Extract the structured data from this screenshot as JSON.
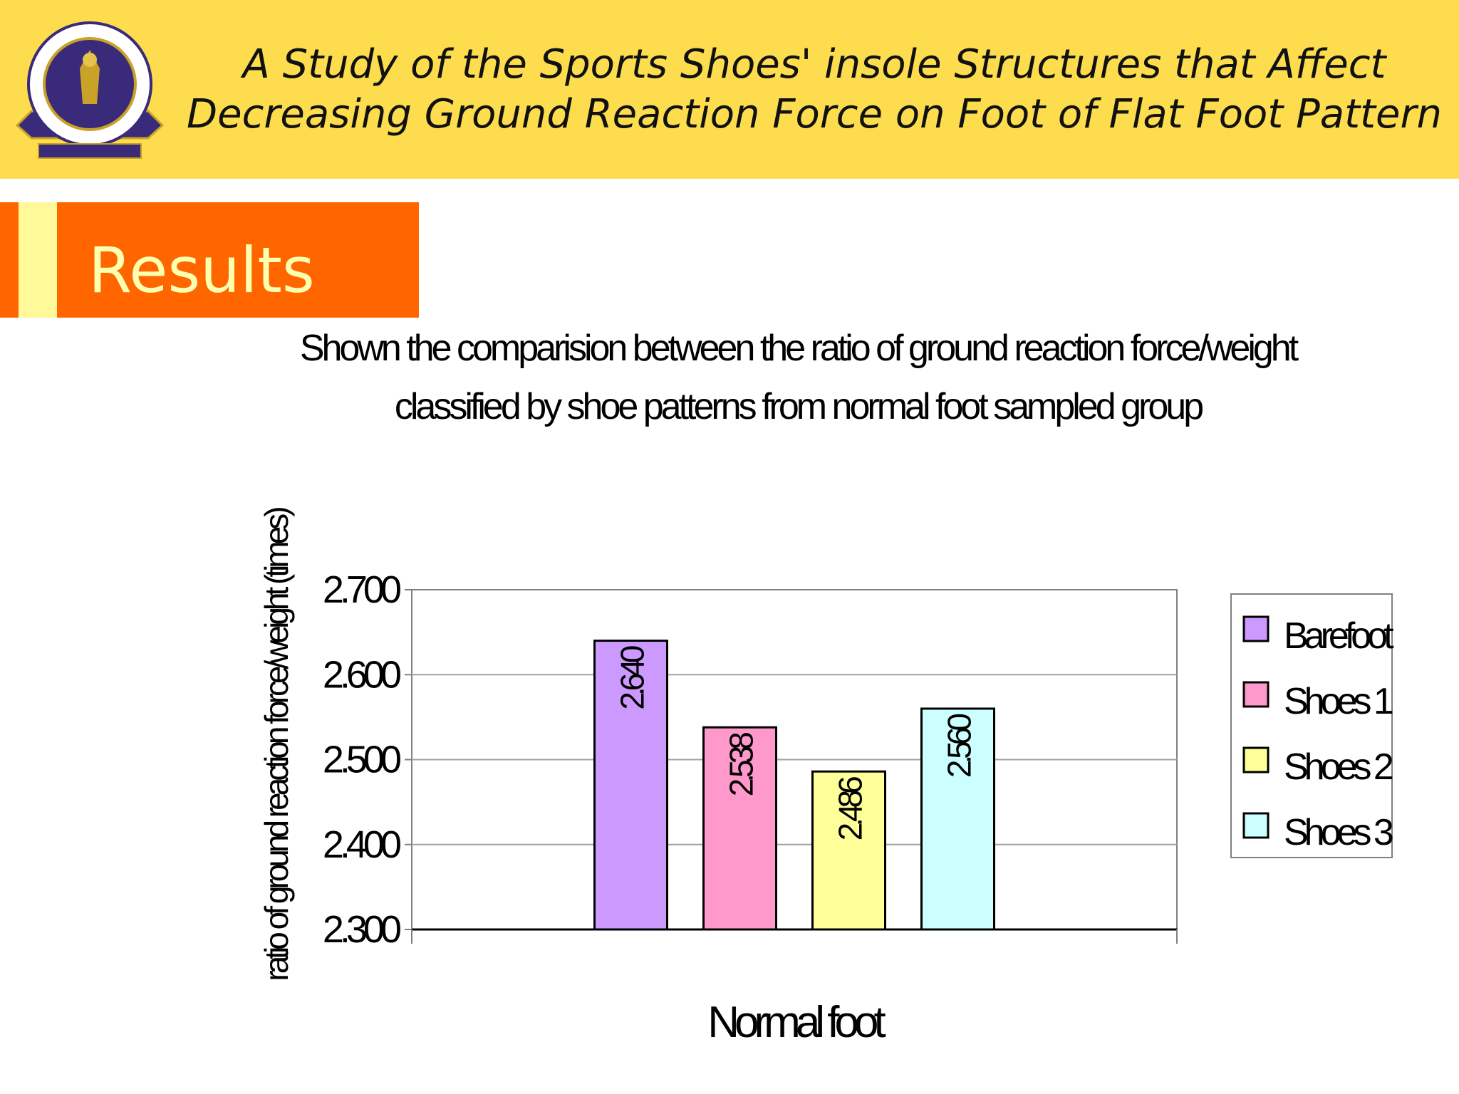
{
  "header": {
    "title": "A Study of the Sports Shoes' insole  Structures that Affect  Decreasing Ground Reaction Force on Foot of  Flat Foot Pattern"
  },
  "section": {
    "title": "Results"
  },
  "colors": {
    "header_bg": "#FDDD4E",
    "section_bar": "#FF6600",
    "section_stripe": "#FFF99A",
    "section_text": "#FFFFB0"
  },
  "chart_data": {
    "type": "bar",
    "title": "Shown the comparision between the ratio of ground reaction force/weight classified by shoe patterns from normal foot sampled group",
    "categories": [
      "Normal foot"
    ],
    "xlabel": "Normal foot",
    "ylabel": "ratio of ground reaction force/weight (times)",
    "ylim": [
      2.3,
      2.7
    ],
    "yticks": [
      {
        "value": 2.3,
        "label": "2.300"
      },
      {
        "value": 2.4,
        "label": "2.400"
      },
      {
        "value": 2.5,
        "label": "2.500"
      },
      {
        "value": 2.6,
        "label": "2.600"
      },
      {
        "value": 2.7,
        "label": "2.700"
      }
    ],
    "grid": true,
    "legend": "right",
    "series": [
      {
        "name": "Barefoot",
        "values": [
          2.64
        ],
        "label": "2.640",
        "color": "#CC99FF"
      },
      {
        "name": "Shoes 1",
        "values": [
          2.538
        ],
        "label": "2.538",
        "color": "#FF99CC"
      },
      {
        "name": "Shoes 2",
        "values": [
          2.486
        ],
        "label": "2.486",
        "color": "#FFFF99"
      },
      {
        "name": "Shoes 3",
        "values": [
          2.56
        ],
        "label": "2.560",
        "color": "#CCFFFF"
      }
    ]
  }
}
